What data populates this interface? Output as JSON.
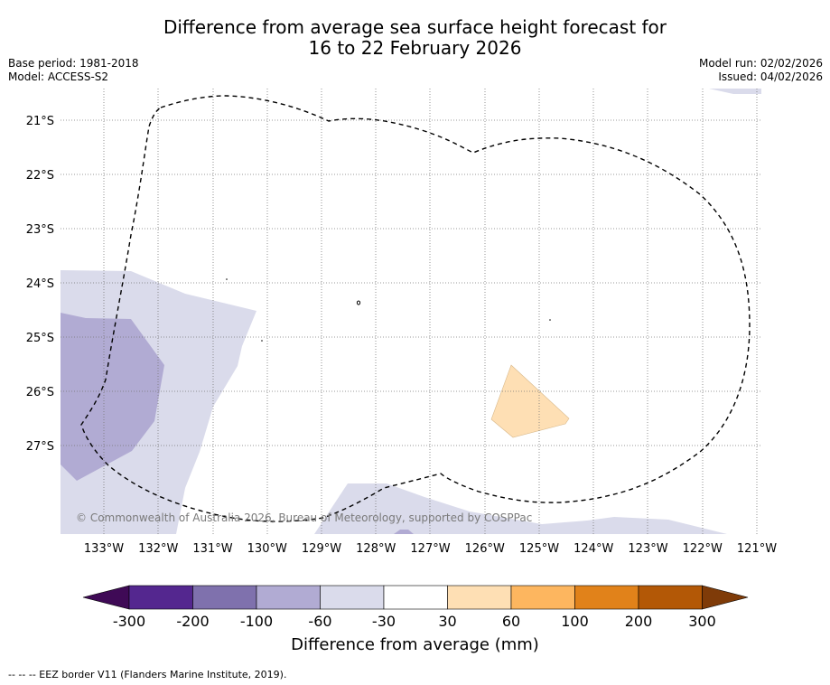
{
  "title": {
    "line1": "Difference from average sea surface height forecast for",
    "line2": "16 to 22 February 2026"
  },
  "meta": {
    "base_period": "Base period: 1981-2018",
    "model": "Model: ACCESS-S2",
    "model_run": "Model run: 02/02/2026",
    "issued": "Issued: 04/02/2026"
  },
  "map": {
    "lon_labels": [
      "133°W",
      "132°W",
      "131°W",
      "130°W",
      "129°W",
      "128°W",
      "127°W",
      "126°W",
      "125°W",
      "124°W",
      "123°W",
      "122°W",
      "121°W"
    ],
    "lat_labels": [
      "21°S",
      "22°S",
      "23°S",
      "24°S",
      "25°S",
      "26°S",
      "27°S"
    ],
    "copyright": "© Commonwealth of Australia 2026, Bureau of Meteorology, supported by COSPPac"
  },
  "colorbar": {
    "title": "Difference from average (mm)",
    "labels": [
      "-300",
      "-200",
      "-100",
      "-60",
      "-30",
      "30",
      "60",
      "100",
      "200",
      "300"
    ],
    "colors": [
      "#3f0a56",
      "#54278f",
      "#7f71ad",
      "#b1abd3",
      "#dadbeb",
      "#ffffff",
      "#fedfb4",
      "#fdb65f",
      "#e1821a",
      "#b35806",
      "#7f3b08"
    ]
  },
  "footnote": "-- -- -- EEZ border V11 (Flanders Marine Institute, 2019)."
}
